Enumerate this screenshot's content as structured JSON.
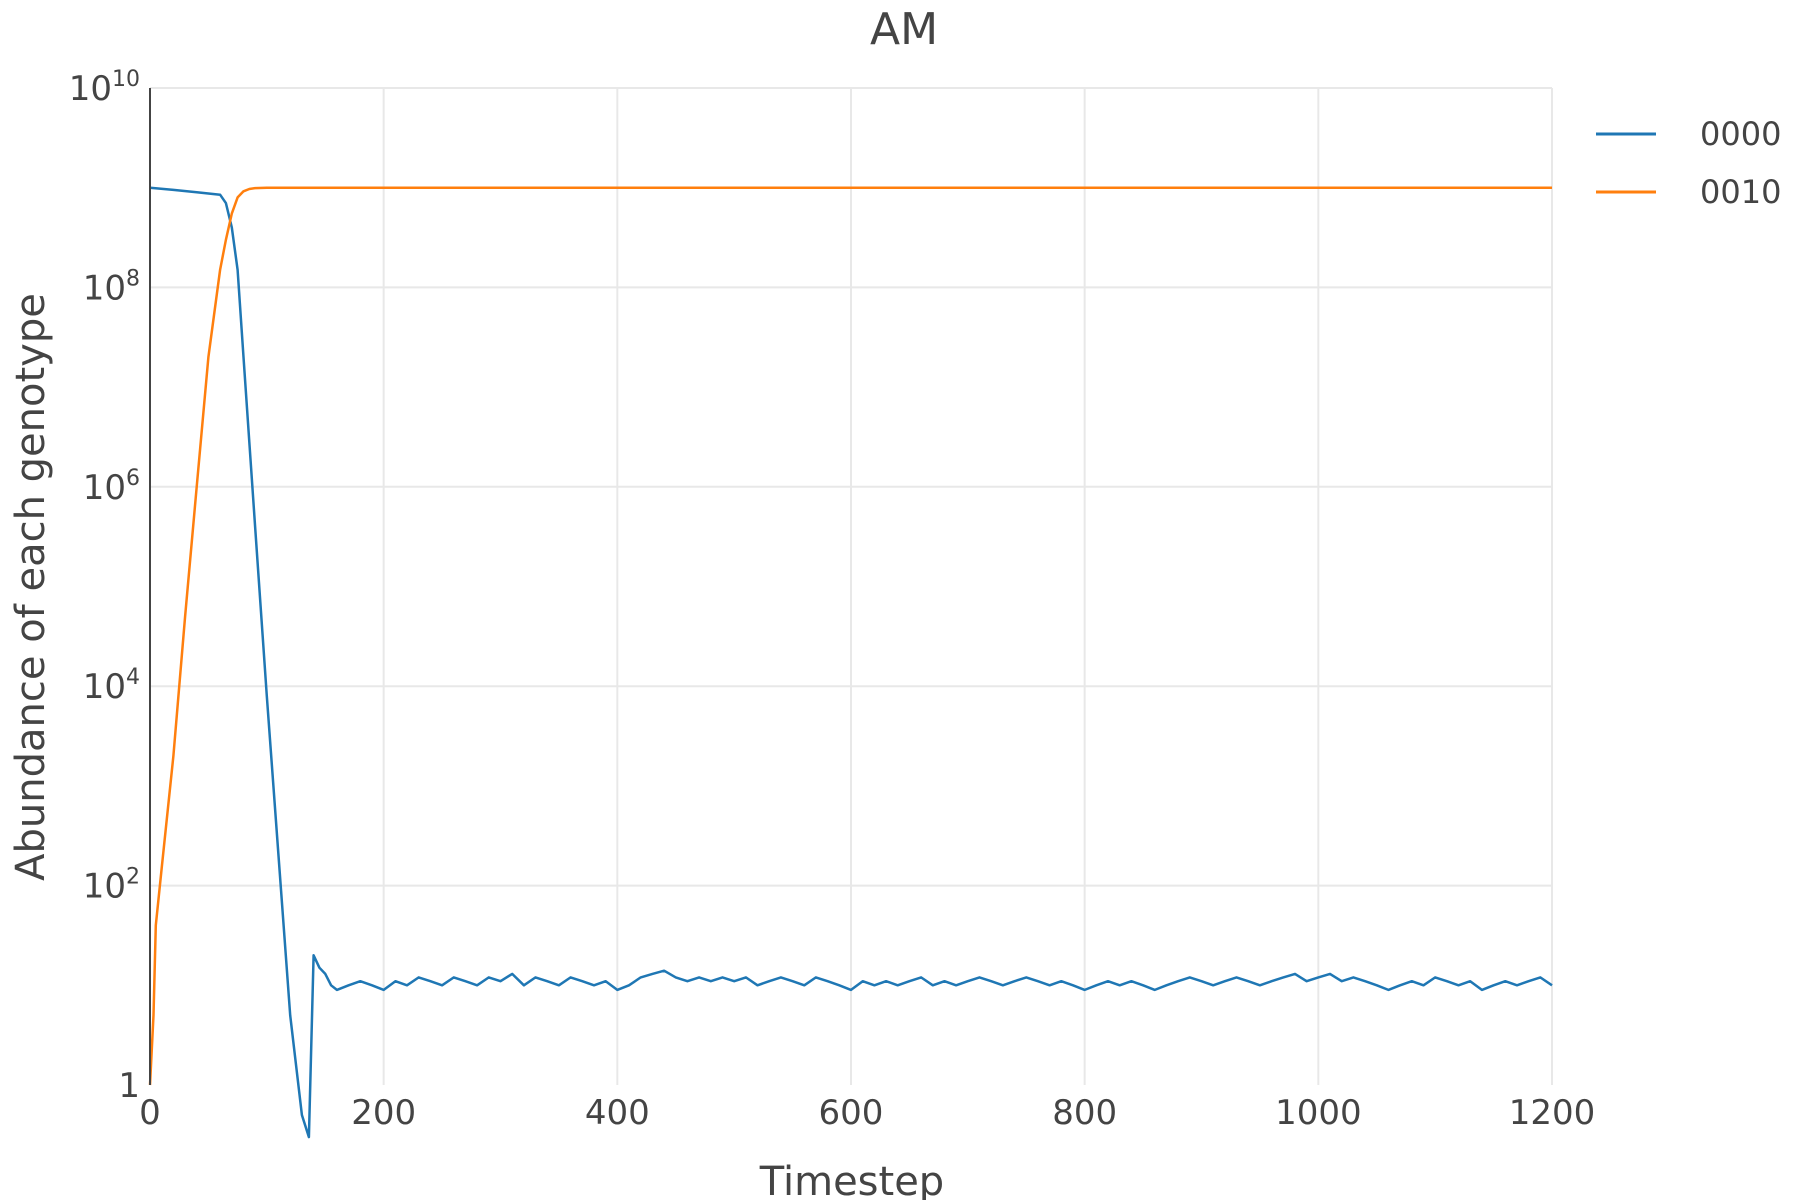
{
  "chart_data": {
    "type": "line",
    "title": "AM",
    "xlabel": "Timestep",
    "ylabel": "Abundance of each genotype",
    "xlim": [
      0,
      1200
    ],
    "ylim": [
      1,
      10000000000
    ],
    "yscale": "log",
    "grid": true,
    "legend_position": "top-right",
    "x_ticks": [
      "0",
      "200",
      "400",
      "600",
      "800",
      "1000",
      "1200"
    ],
    "y_ticks": [
      {
        "base": "1",
        "exp": ""
      },
      {
        "base": "10",
        "exp": "2"
      },
      {
        "base": "10",
        "exp": "4"
      },
      {
        "base": "10",
        "exp": "6"
      },
      {
        "base": "10",
        "exp": "8"
      },
      {
        "base": "10",
        "exp": "10"
      }
    ],
    "series": [
      {
        "name": "0000",
        "color": "#1f77b4",
        "x": [
          0,
          20,
          40,
          60,
          65,
          70,
          75,
          80,
          90,
          100,
          110,
          120,
          130,
          136,
          140,
          145,
          150,
          155,
          160,
          170,
          180,
          190,
          200,
          210,
          220,
          230,
          240,
          250,
          260,
          270,
          280,
          290,
          300,
          310,
          320,
          330,
          340,
          350,
          360,
          370,
          380,
          390,
          400,
          410,
          420,
          430,
          440,
          450,
          460,
          470,
          480,
          490,
          500,
          510,
          520,
          530,
          540,
          550,
          560,
          570,
          580,
          590,
          600,
          610,
          620,
          630,
          640,
          650,
          660,
          670,
          680,
          690,
          700,
          710,
          720,
          730,
          740,
          750,
          760,
          770,
          780,
          790,
          800,
          810,
          820,
          830,
          840,
          850,
          860,
          870,
          880,
          890,
          900,
          910,
          920,
          930,
          940,
          950,
          960,
          970,
          980,
          990,
          1000,
          1010,
          1020,
          1030,
          1040,
          1050,
          1060,
          1070,
          1080,
          1090,
          1100,
          1110,
          1120,
          1130,
          1140,
          1150,
          1160,
          1170,
          1180,
          1190,
          1200
        ],
        "y": [
          1000000000,
          950000000,
          900000000,
          850000000,
          700000000,
          400000000,
          150000000,
          20000000,
          400000,
          8000,
          200,
          5,
          0.5,
          0.3,
          20,
          15,
          13,
          10,
          9,
          10,
          11,
          10,
          9,
          11,
          10,
          12,
          11,
          10,
          12,
          11,
          10,
          12,
          11,
          13,
          10,
          12,
          11,
          10,
          12,
          11,
          10,
          11,
          9,
          10,
          12,
          13,
          14,
          12,
          11,
          12,
          11,
          12,
          11,
          12,
          10,
          11,
          12,
          11,
          10,
          12,
          11,
          10,
          9,
          11,
          10,
          11,
          10,
          11,
          12,
          10,
          11,
          10,
          11,
          12,
          11,
          10,
          11,
          12,
          11,
          10,
          11,
          10,
          9,
          10,
          11,
          10,
          11,
          10,
          9,
          10,
          11,
          12,
          11,
          10,
          11,
          12,
          11,
          10,
          11,
          12,
          13,
          11,
          12,
          13,
          11,
          12,
          11,
          10,
          9,
          10,
          11,
          10,
          12,
          11,
          10,
          11,
          9,
          10,
          11,
          10,
          11,
          12,
          10
        ]
      },
      {
        "name": "0010",
        "color": "#ff7f0e",
        "x": [
          0,
          3,
          5,
          10,
          20,
          30,
          40,
          50,
          60,
          65,
          70,
          75,
          80,
          85,
          90,
          100,
          120,
          200,
          400,
          600,
          800,
          1000,
          1200
        ],
        "y": [
          1,
          5,
          40,
          150,
          2000,
          50000,
          1000000,
          20000000,
          150000000,
          300000000,
          550000000,
          800000000,
          920000000,
          970000000,
          990000000,
          1000000000,
          1000000000,
          1000000000,
          1000000000,
          1000000000,
          1000000000,
          1000000000,
          1000000000
        ]
      }
    ]
  }
}
